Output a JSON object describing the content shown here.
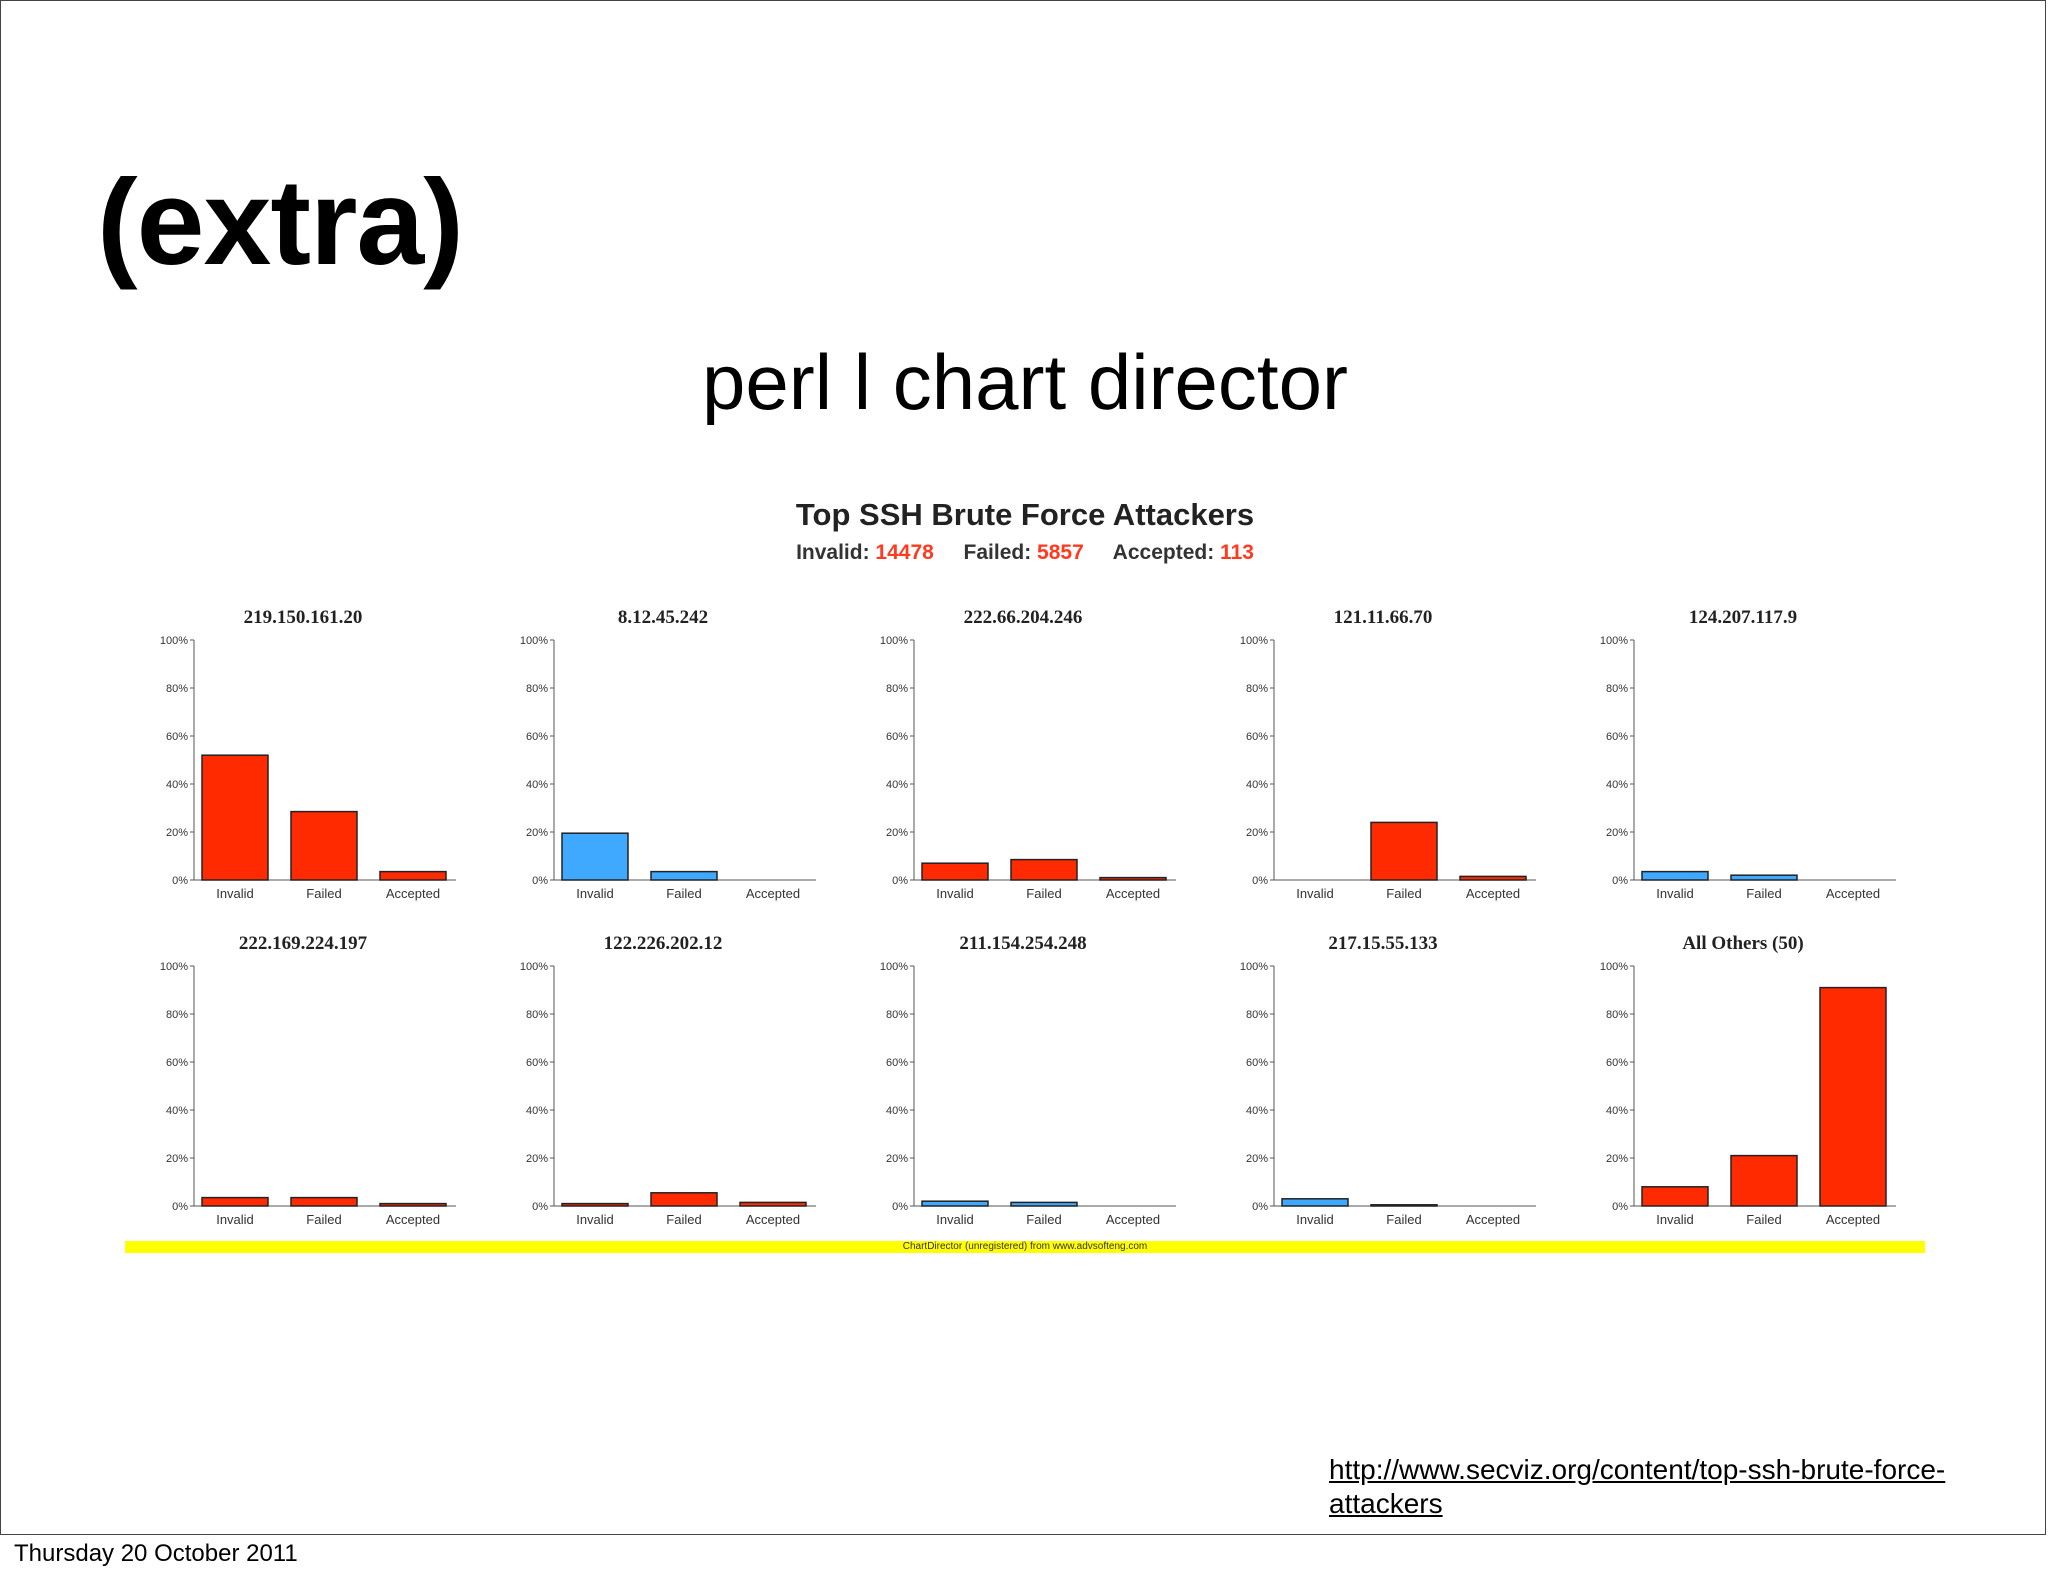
{
  "slide": {
    "title": "(extra)",
    "subtitle": "perl l chart director",
    "link": "http://www.secviz.org/content/top-ssh-brute-force-attackers",
    "footer": "Thursday 20 October 2011"
  },
  "figure": {
    "title": "Top SSH Brute Force Attackers",
    "totals": [
      {
        "label": "Invalid:",
        "value": "14478"
      },
      {
        "label": "Failed:",
        "value": "5857"
      },
      {
        "label": "Accepted:",
        "value": "113"
      }
    ],
    "watermark": "ChartDirector (unregistered) from www.advsofteng.com",
    "colors": {
      "red": "#ff2a00",
      "blue": "#3fa9ff",
      "total_value": "#ff3a1f"
    }
  },
  "chart_data": [
    {
      "type": "bar",
      "title": "219.150.161.20",
      "categories": [
        "Invalid",
        "Failed",
        "Accepted"
      ],
      "values": [
        52,
        28.5,
        3.5
      ],
      "color": "red",
      "ylim": [
        0,
        100
      ],
      "y_ticks": [
        "0%",
        "20%",
        "40%",
        "60%",
        "80%",
        "100%"
      ]
    },
    {
      "type": "bar",
      "title": "8.12.45.242",
      "categories": [
        "Invalid",
        "Failed",
        "Accepted"
      ],
      "values": [
        19.5,
        3.5,
        0
      ],
      "color": "blue",
      "ylim": [
        0,
        100
      ],
      "y_ticks": [
        "0%",
        "20%",
        "40%",
        "60%",
        "80%",
        "100%"
      ]
    },
    {
      "type": "bar",
      "title": "222.66.204.246",
      "categories": [
        "Invalid",
        "Failed",
        "Accepted"
      ],
      "values": [
        7,
        8.5,
        1
      ],
      "color": "red",
      "ylim": [
        0,
        100
      ],
      "y_ticks": [
        "0%",
        "20%",
        "40%",
        "60%",
        "80%",
        "100%"
      ]
    },
    {
      "type": "bar",
      "title": "121.11.66.70",
      "categories": [
        "Invalid",
        "Failed",
        "Accepted"
      ],
      "values": [
        0,
        24,
        1.5
      ],
      "color": "red",
      "ylim": [
        0,
        100
      ],
      "y_ticks": [
        "0%",
        "20%",
        "40%",
        "60%",
        "80%",
        "100%"
      ]
    },
    {
      "type": "bar",
      "title": "124.207.117.9",
      "categories": [
        "Invalid",
        "Failed",
        "Accepted"
      ],
      "values": [
        3.5,
        2,
        0
      ],
      "color": "blue",
      "ylim": [
        0,
        100
      ],
      "y_ticks": [
        "0%",
        "20%",
        "40%",
        "60%",
        "80%",
        "100%"
      ]
    },
    {
      "type": "bar",
      "title": "222.169.224.197",
      "categories": [
        "Invalid",
        "Failed",
        "Accepted"
      ],
      "values": [
        3.5,
        3.5,
        1
      ],
      "color": "red",
      "ylim": [
        0,
        100
      ],
      "y_ticks": [
        "0%",
        "20%",
        "40%",
        "60%",
        "80%",
        "100%"
      ]
    },
    {
      "type": "bar",
      "title": "122.226.202.12",
      "categories": [
        "Invalid",
        "Failed",
        "Accepted"
      ],
      "values": [
        1,
        5.5,
        1.5
      ],
      "color": "red",
      "ylim": [
        0,
        100
      ],
      "y_ticks": [
        "0%",
        "20%",
        "40%",
        "60%",
        "80%",
        "100%"
      ]
    },
    {
      "type": "bar",
      "title": "211.154.254.248",
      "categories": [
        "Invalid",
        "Failed",
        "Accepted"
      ],
      "values": [
        2,
        1.5,
        0
      ],
      "color": "blue",
      "ylim": [
        0,
        100
      ],
      "y_ticks": [
        "0%",
        "20%",
        "40%",
        "60%",
        "80%",
        "100%"
      ]
    },
    {
      "type": "bar",
      "title": "217.15.55.133",
      "categories": [
        "Invalid",
        "Failed",
        "Accepted"
      ],
      "values": [
        3,
        0.5,
        0
      ],
      "color": "blue",
      "ylim": [
        0,
        100
      ],
      "y_ticks": [
        "0%",
        "20%",
        "40%",
        "60%",
        "80%",
        "100%"
      ]
    },
    {
      "type": "bar",
      "title": "All Others (50)",
      "categories": [
        "Invalid",
        "Failed",
        "Accepted"
      ],
      "values": [
        8,
        21,
        91
      ],
      "color": "red",
      "ylim": [
        0,
        100
      ],
      "y_ticks": [
        "0%",
        "20%",
        "40%",
        "60%",
        "80%",
        "100%"
      ]
    }
  ]
}
